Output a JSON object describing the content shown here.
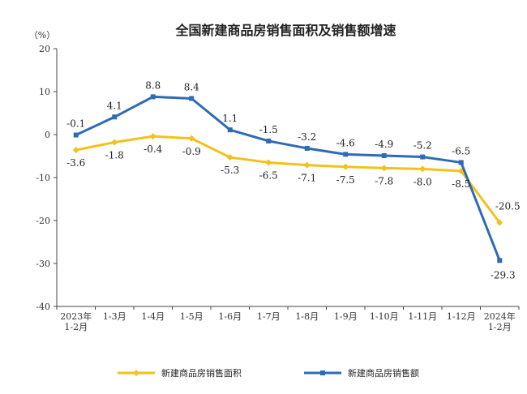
{
  "chart_data": {
    "type": "line",
    "title": "全国新建商品房销售面积及销售额增速",
    "unit_label": "（%）",
    "categories": [
      [
        "2023年",
        "1-2月"
      ],
      [
        "1-3月"
      ],
      [
        "1-4月"
      ],
      [
        "1-5月"
      ],
      [
        "1-6月"
      ],
      [
        "1-7月"
      ],
      [
        "1-8月"
      ],
      [
        "1-9月"
      ],
      [
        "1-10月"
      ],
      [
        "1-11月"
      ],
      [
        "1-12月"
      ],
      [
        "2024年",
        "1-2月"
      ]
    ],
    "ylim": [
      -40,
      20
    ],
    "yticks": [
      20,
      10,
      0,
      -10,
      -20,
      -30,
      -40
    ],
    "grid": false,
    "legend_position": "bottom",
    "series": [
      {
        "name": "新建商品房销售面积",
        "color": "#F2C21A",
        "values": [
          -3.6,
          -1.8,
          -0.4,
          -0.9,
          -5.3,
          -6.5,
          -7.1,
          -7.5,
          -7.8,
          -8.0,
          -8.5,
          -20.5
        ],
        "labels": [
          "-3.6",
          "-1.8",
          "-0.4",
          "-0.9",
          "-5.3",
          "-6.5",
          "-7.1",
          "-7.5",
          "-7.8",
          "-8.0",
          "-8.5",
          "-20.5"
        ]
      },
      {
        "name": "新建商品房销售额",
        "color": "#2E6BB5",
        "values": [
          -0.1,
          4.1,
          8.8,
          8.4,
          1.1,
          -1.5,
          -3.2,
          -4.6,
          -4.9,
          -5.2,
          -6.5,
          -29.3
        ],
        "labels": [
          "-0.1",
          "4.1",
          "8.8",
          "8.4",
          "1.1",
          "-1.5",
          "-3.2",
          "-4.6",
          "-4.9",
          "-5.2",
          "-6.5",
          "-29.3"
        ]
      }
    ]
  }
}
